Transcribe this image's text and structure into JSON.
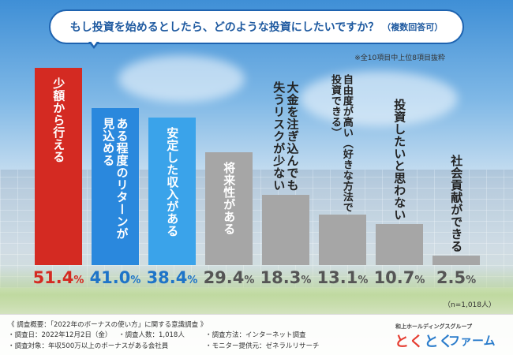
{
  "title": {
    "main": "もし投資を始めるとしたら、どのような投資にしたいですか？",
    "sub": "（複数回答可）"
  },
  "note": "※全10項目中上位8項目抜粋",
  "n_label": "（n=1,018人）",
  "colors": {
    "bar1": "#d42a22",
    "bar2": "#2a88dd",
    "bar3": "#3aa3ea",
    "gray": "#a6a6a6",
    "value_red": "#d42a22",
    "value_blue": "#1e74c8",
    "value_gray": "#555555"
  },
  "chart_data": {
    "type": "bar",
    "title": "もし投資を始めるとしたら、どのような投資にしたいですか？（複数回答可）",
    "categories": [
      "少額から行える",
      "ある程度のリターンが見込める",
      "安定した収入がある",
      "将来性がある",
      "大金を注ぎ込んでも失うリスクが少ない",
      "自由度が高い（好きな方法で投資できる）",
      "投資したいと思わない",
      "社会貢献ができる"
    ],
    "label_lines": [
      [
        "少額から行える"
      ],
      [
        "ある程度のリターンが",
        "見込める"
      ],
      [
        "安定した収入がある"
      ],
      [
        "将来性がある"
      ],
      [
        "大金を注ぎ込んでも",
        "失うリスクが少ない"
      ],
      [
        "自由度が高い（好きな方法で",
        "投資できる）"
      ],
      [
        "投資したいと思わない"
      ],
      [
        "社会貢献ができる"
      ]
    ],
    "values": [
      51.4,
      41.0,
      38.4,
      29.4,
      18.3,
      13.1,
      10.7,
      2.5
    ],
    "value_labels": [
      "51.4",
      "41.0",
      "38.4",
      "29.4",
      "18.3",
      "13.1",
      "10.7",
      "2.5"
    ],
    "unit": "%",
    "ylim": [
      0,
      51.4
    ]
  },
  "footer": {
    "overview": "《 調査概要：「2022年のボーナスの使い方」に関する意識調査 》",
    "date": "・調査日：2022年12月2日（金）",
    "respondents": "・調査人数：1,018人",
    "method": "・調査方法：インターネット調査",
    "target": "・調査対象：年収500万以上のボーナスがある会社員",
    "provider": "・モニター提供元：ゼネラルリサーチ"
  },
  "brand": {
    "group": "和上ホールディングスグループ",
    "name_part1": "とく",
    "name_part2": "とく",
    "name_part3": "ファーム"
  }
}
